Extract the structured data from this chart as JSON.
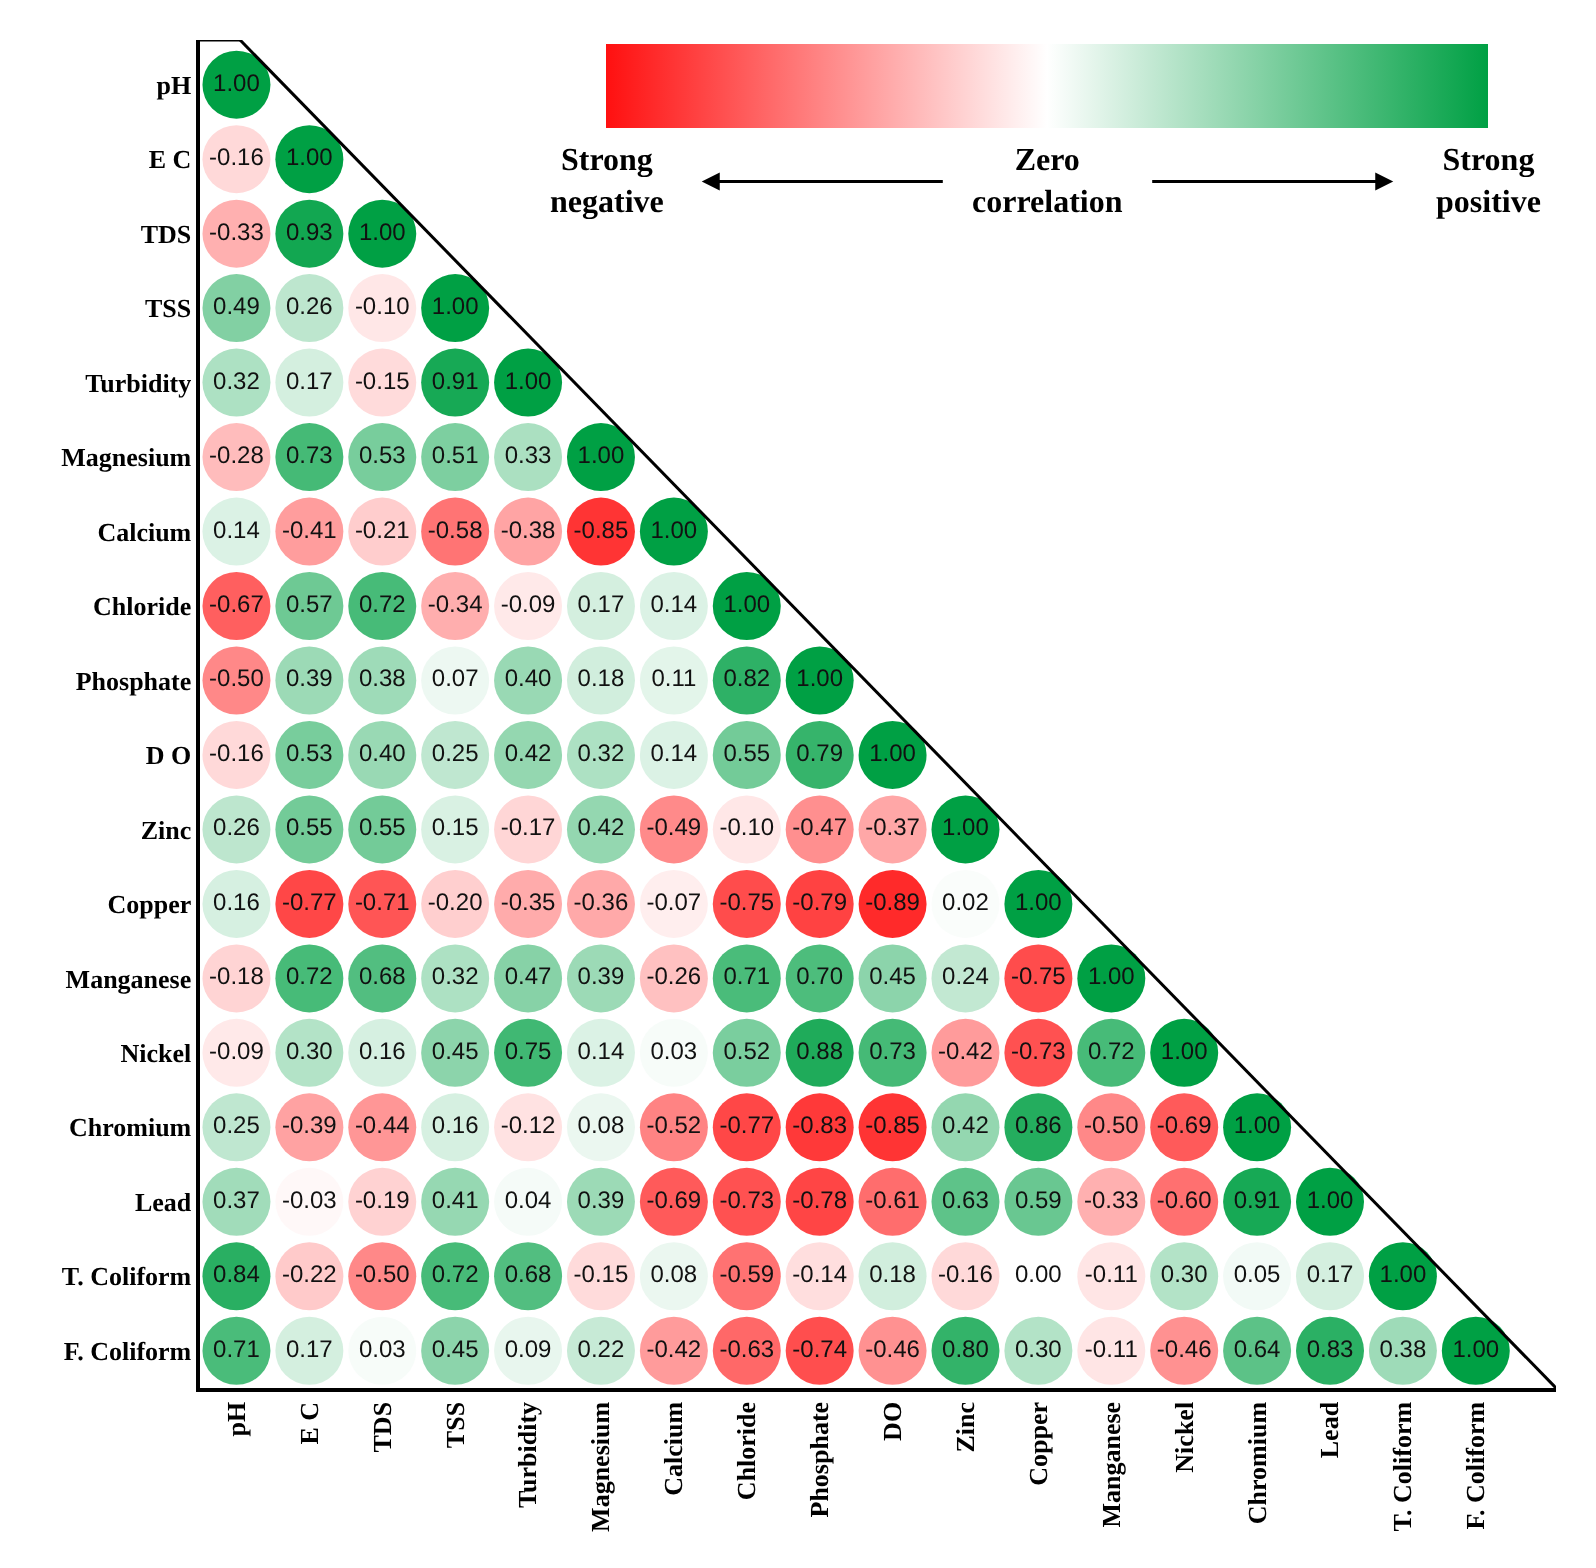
{
  "chart_data": {
    "type": "heatmap",
    "marker": "circle",
    "grid": false,
    "categories": [
      "pH",
      "E C",
      "TDS",
      "TSS",
      "Turbidity",
      "Magnesium",
      "Calcium",
      "Chloride",
      "Phosphate",
      "DO",
      "Zinc",
      "Copper",
      "Manganese",
      "Nickel",
      "Chromium",
      "Lead",
      "T. Coliform",
      "F. Coliform"
    ],
    "y_categories": [
      "pH",
      "E C",
      "TDS",
      "TSS",
      "Turbidity",
      "Magnesium",
      "Calcium",
      "Chloride",
      "Phosphate",
      "D O",
      "Zinc",
      "Copper",
      "Manganese",
      "Nickel",
      "Chromium",
      "Lead",
      "T. Coliform",
      "F. Coliform"
    ],
    "cells": [
      [
        1.0,
        null,
        null,
        null,
        null,
        null,
        null,
        null,
        null,
        null,
        null,
        null,
        null,
        null,
        null,
        null,
        null,
        null
      ],
      [
        -0.16,
        1.0,
        null,
        null,
        null,
        null,
        null,
        null,
        null,
        null,
        null,
        null,
        null,
        null,
        null,
        null,
        null,
        null
      ],
      [
        -0.33,
        0.93,
        1.0,
        null,
        null,
        null,
        null,
        null,
        null,
        null,
        null,
        null,
        null,
        null,
        null,
        null,
        null,
        null
      ],
      [
        0.49,
        0.26,
        -0.1,
        1.0,
        null,
        null,
        null,
        null,
        null,
        null,
        null,
        null,
        null,
        null,
        null,
        null,
        null,
        null
      ],
      [
        0.32,
        0.17,
        -0.15,
        0.91,
        1.0,
        null,
        null,
        null,
        null,
        null,
        null,
        null,
        null,
        null,
        null,
        null,
        null,
        null
      ],
      [
        -0.28,
        0.73,
        0.53,
        0.51,
        0.33,
        1.0,
        null,
        null,
        null,
        null,
        null,
        null,
        null,
        null,
        null,
        null,
        null,
        null
      ],
      [
        0.14,
        -0.41,
        -0.21,
        -0.58,
        -0.38,
        -0.85,
        1.0,
        null,
        null,
        null,
        null,
        null,
        null,
        null,
        null,
        null,
        null,
        null
      ],
      [
        -0.67,
        0.57,
        0.72,
        -0.34,
        -0.09,
        0.17,
        0.14,
        1.0,
        null,
        null,
        null,
        null,
        null,
        null,
        null,
        null,
        null,
        null
      ],
      [
        -0.5,
        0.39,
        0.38,
        0.07,
        0.4,
        0.18,
        0.11,
        0.82,
        1.0,
        null,
        null,
        null,
        null,
        null,
        null,
        null,
        null,
        null
      ],
      [
        -0.16,
        0.53,
        0.4,
        0.25,
        0.42,
        0.32,
        0.14,
        0.55,
        0.79,
        1.0,
        null,
        null,
        null,
        null,
        null,
        null,
        null,
        null
      ],
      [
        0.26,
        0.55,
        0.55,
        0.15,
        -0.17,
        0.42,
        -0.49,
        -0.1,
        -0.47,
        -0.37,
        1.0,
        null,
        null,
        null,
        null,
        null,
        null,
        null
      ],
      [
        0.16,
        -0.77,
        -0.71,
        -0.2,
        -0.35,
        -0.36,
        -0.07,
        -0.75,
        -0.79,
        -0.89,
        0.02,
        1.0,
        null,
        null,
        null,
        null,
        null,
        null
      ],
      [
        -0.18,
        0.72,
        0.68,
        0.32,
        0.47,
        0.39,
        -0.26,
        0.71,
        0.7,
        0.45,
        0.24,
        -0.75,
        1.0,
        null,
        null,
        null,
        null,
        null
      ],
      [
        -0.09,
        0.3,
        0.16,
        0.45,
        0.75,
        0.14,
        0.03,
        0.52,
        0.88,
        0.73,
        -0.42,
        -0.73,
        0.72,
        1.0,
        null,
        null,
        null,
        null
      ],
      [
        0.25,
        -0.39,
        -0.44,
        0.16,
        -0.12,
        0.08,
        -0.52,
        -0.77,
        -0.83,
        -0.85,
        0.42,
        0.86,
        -0.5,
        -0.69,
        1.0,
        null,
        null,
        null
      ],
      [
        0.37,
        -0.03,
        -0.19,
        0.41,
        0.04,
        0.39,
        -0.69,
        -0.73,
        -0.78,
        -0.61,
        0.63,
        0.59,
        -0.33,
        -0.6,
        0.91,
        1.0,
        null,
        null
      ],
      [
        0.84,
        -0.22,
        -0.5,
        0.72,
        0.68,
        -0.15,
        0.08,
        -0.59,
        -0.14,
        0.18,
        -0.16,
        0.0,
        -0.11,
        0.3,
        0.05,
        0.17,
        1.0,
        null
      ],
      [
        0.71,
        0.17,
        0.03,
        0.45,
        0.09,
        0.22,
        -0.42,
        -0.63,
        -0.74,
        -0.46,
        0.8,
        0.3,
        -0.11,
        -0.46,
        0.64,
        0.83,
        0.38,
        1.0
      ]
    ],
    "cell_labels": [
      [
        "1.00",
        null,
        null,
        null,
        null,
        null,
        null,
        null,
        null,
        null,
        null,
        null,
        null,
        null,
        null,
        null,
        null,
        null
      ],
      [
        "-0.16",
        "1.00",
        null,
        null,
        null,
        null,
        null,
        null,
        null,
        null,
        null,
        null,
        null,
        null,
        null,
        null,
        null,
        null
      ],
      [
        "-0.33",
        "0.93",
        "1.00",
        null,
        null,
        null,
        null,
        null,
        null,
        null,
        null,
        null,
        null,
        null,
        null,
        null,
        null,
        null
      ],
      [
        "0.49",
        "0.26",
        "-0.10",
        "1.00",
        null,
        null,
        null,
        null,
        null,
        null,
        null,
        null,
        null,
        null,
        null,
        null,
        null,
        null
      ],
      [
        "0.32",
        "0.17",
        "-0.15",
        "0.91",
        "1.00",
        null,
        null,
        null,
        null,
        null,
        null,
        null,
        null,
        null,
        null,
        null,
        null,
        null
      ],
      [
        "-0.28",
        "0.73",
        "0.53",
        "0.51",
        "0.33",
        "1.00",
        null,
        null,
        null,
        null,
        null,
        null,
        null,
        null,
        null,
        null,
        null,
        null
      ],
      [
        "0.14",
        "-0.41",
        "-0.21",
        "-0.58",
        "-0.38",
        "-0.85",
        "1.00",
        null,
        null,
        null,
        null,
        null,
        null,
        null,
        null,
        null,
        null,
        null
      ],
      [
        "-0.67",
        "0.57",
        "0.72",
        "-0.34",
        "-0.09",
        "0.17",
        "0.14",
        "1.00",
        null,
        null,
        null,
        null,
        null,
        null,
        null,
        null,
        null,
        null
      ],
      [
        "-0.50",
        "0.39",
        "0.38",
        "0.07",
        "0.40",
        "0.18",
        "0.11",
        "0.82",
        "1.00",
        null,
        null,
        null,
        null,
        null,
        null,
        null,
        null,
        null
      ],
      [
        "-0.16",
        "0.53",
        "0.40",
        "0.25",
        "0.42",
        "0.32",
        "0.14",
        "0.55",
        "0.79",
        "1.00",
        null,
        null,
        null,
        null,
        null,
        null,
        null,
        null
      ],
      [
        "0.26",
        "0.55",
        "0.55",
        "0.15",
        "-0.17",
        "0.42",
        "-0.49",
        "-0.10",
        "-0.47",
        "-0.37",
        "1.00",
        null,
        null,
        null,
        null,
        null,
        null,
        null
      ],
      [
        "0.16",
        "-0.77",
        "-0.71",
        "-0.20",
        "-0.35",
        "-0.36",
        "-0.07",
        "-0.75",
        "-0.79",
        "-0.89",
        "0.02",
        "1.00",
        null,
        null,
        null,
        null,
        null,
        null
      ],
      [
        "-0.18",
        "0.72",
        "0.68",
        "0.32",
        "0.47",
        "0.39",
        "-0.26",
        "0.71",
        "0.70",
        "0.45",
        "0.24",
        "-0.75",
        "1.00",
        null,
        null,
        null,
        null,
        null
      ],
      [
        "-0.09",
        "0.30",
        "0.16",
        "0.45",
        "0.75",
        "0.14",
        "0.03",
        "0.52",
        "0.88",
        "0.73",
        "-0.42",
        "-0.73",
        "0.72",
        "1.00",
        null,
        null,
        null,
        null
      ],
      [
        "0.25",
        "-0.39",
        "-0.44",
        "0.16",
        "-0.12",
        "0.08",
        "-0.52",
        "-0.77",
        "-0.83",
        "-0.85",
        "0.42",
        "0.86",
        "-0.50",
        "-0.69",
        "1.00",
        null,
        null,
        null
      ],
      [
        "0.37",
        "-0.03",
        "-0.19",
        "0.41",
        "0.04",
        "0.39",
        "-0.69",
        "-0.73",
        "-0.78",
        "-0.61",
        "0.63",
        "0.59",
        "-0.33",
        "-0.60",
        "0.91",
        "1.00",
        null,
        null
      ],
      [
        "0.84",
        "-0.22",
        "-0.50",
        "0.72",
        "0.68",
        "-0.15",
        "0.08",
        "-0.59",
        "-0.14",
        "0.18",
        "-0.16",
        "0.00",
        "-0.11",
        "0.30",
        "0.05",
        "0.17",
        "1.00",
        null
      ],
      [
        "0.71",
        "0.17",
        "0.03",
        "0.45",
        "0.09",
        "0.22",
        "-0.42",
        "-0.63",
        "-0.74",
        "-0.46",
        "0.80",
        "0.30",
        "-0.11",
        "-0.46",
        "0.64",
        "0.83",
        "0.38",
        "1.00"
      ]
    ],
    "annotations": [
      "Strong negative",
      "Zero correlation",
      "Strong positive"
    ]
  }
}
